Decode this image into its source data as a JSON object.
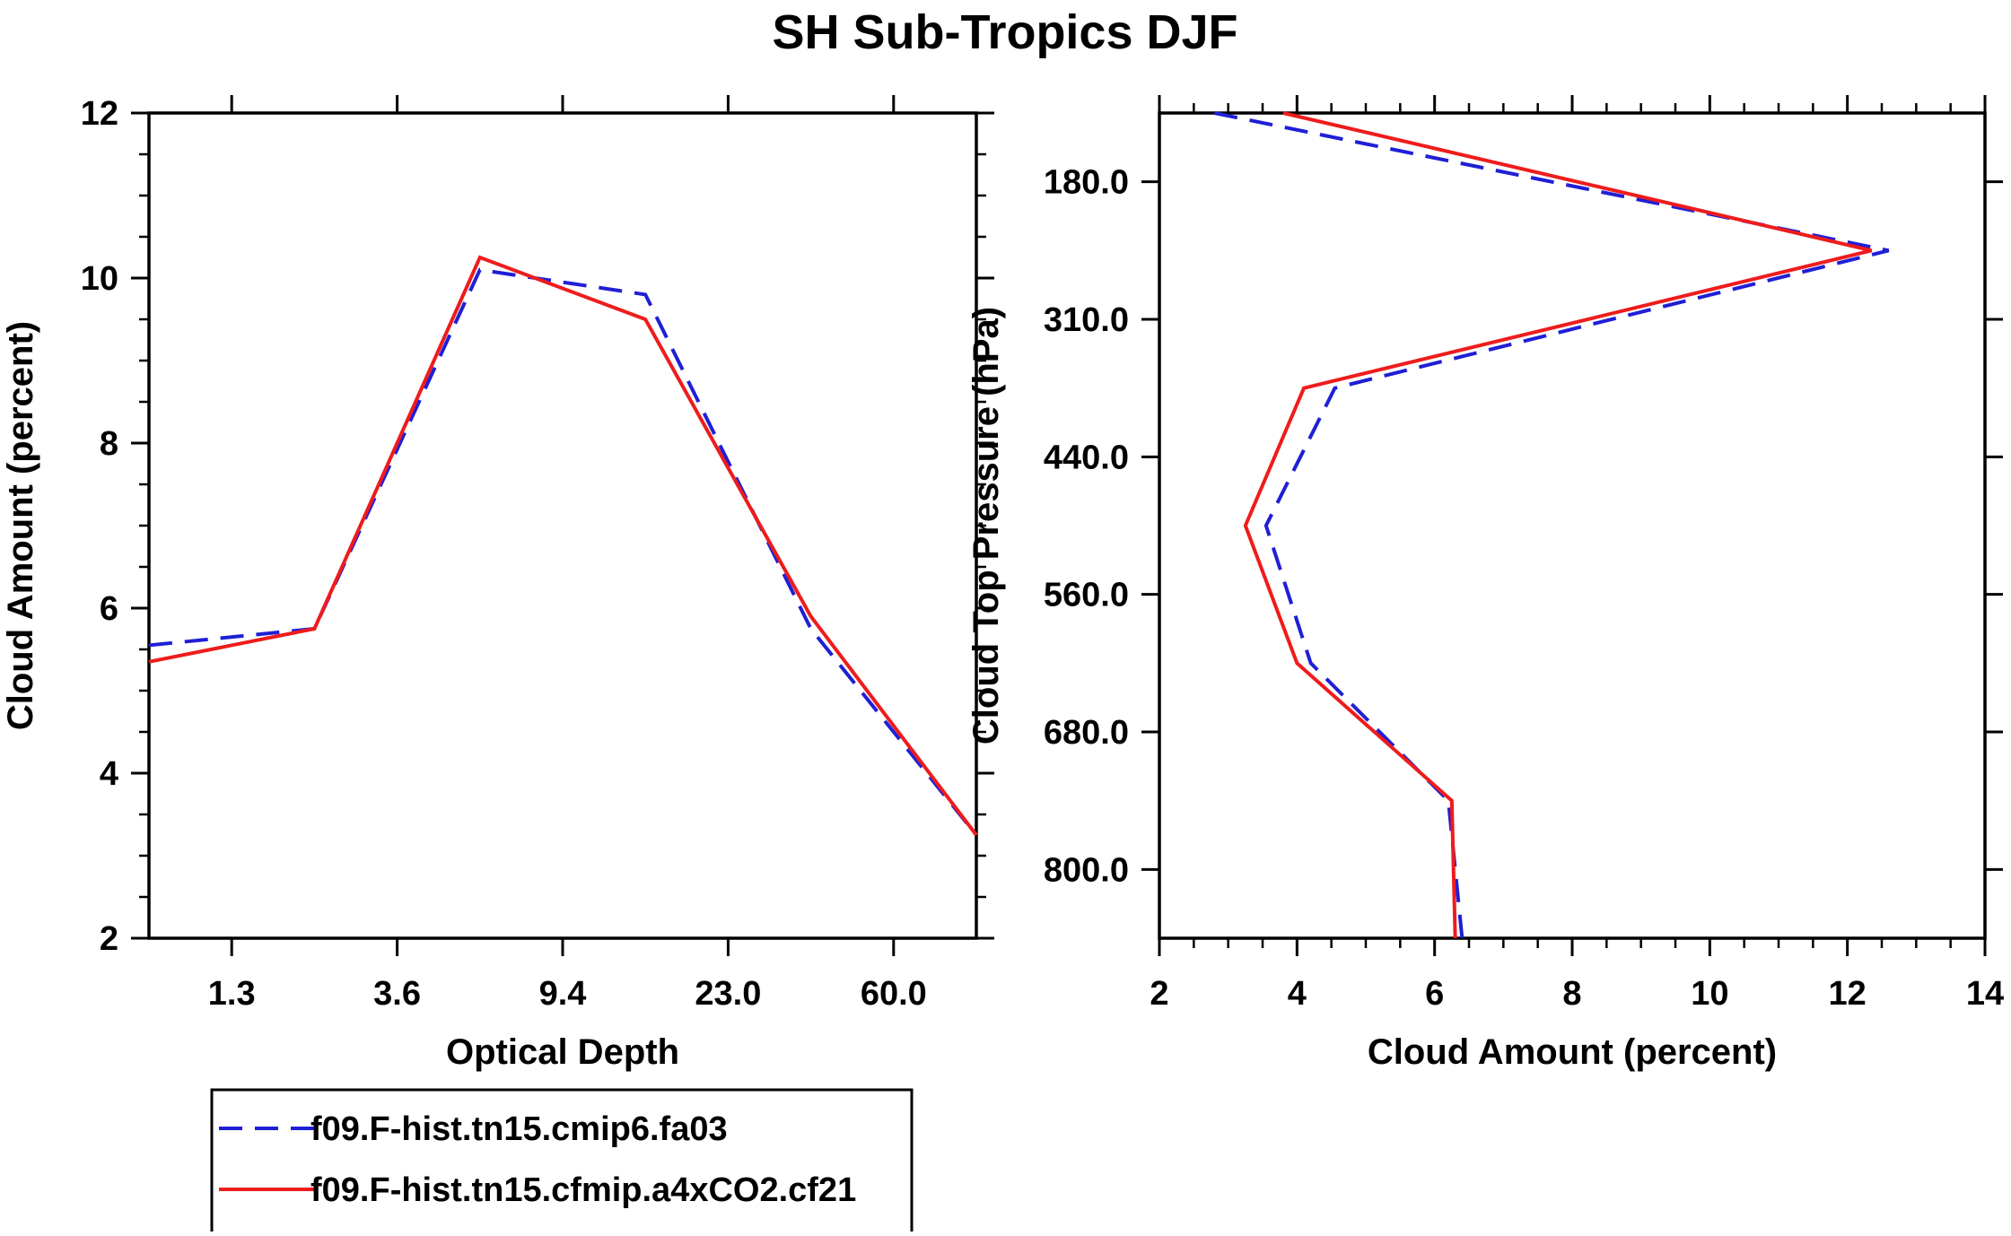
{
  "title": "SH Sub-Tropics DJF",
  "colors": {
    "series_a": "#1f1fd6",
    "series_b": "#ee1c1c",
    "axis": "#000000"
  },
  "legend": {
    "items": [
      {
        "label": "f09.F-hist.tn15.cmip6.fa03",
        "style": "dashed",
        "color": "#1f1fd6"
      },
      {
        "label": "f09.F-hist.tn15.cfmip.a4xCO2.cf21",
        "style": "solid",
        "color": "#ee1c1c"
      }
    ]
  },
  "chart_data": [
    {
      "type": "line",
      "xlabel": "Optical Depth",
      "ylabel": "Cloud Amount (percent)",
      "xlim": [
        0,
        5
      ],
      "ylim": [
        2,
        12
      ],
      "categories": [
        "1.3",
        "3.6",
        "9.4",
        "23.0",
        "60.0"
      ],
      "category_positions": [
        0.5,
        1.5,
        2.5,
        3.5,
        4.5
      ],
      "yticks": [
        2,
        4,
        6,
        8,
        10,
        12
      ],
      "yticks_minor_step": 0.5,
      "series": [
        {
          "name": "f09.F-hist.tn15.cmip6.fa03",
          "style": "dashed",
          "x": [
            0,
            1,
            2,
            3,
            4,
            5
          ],
          "values": [
            5.55,
            5.75,
            10.1,
            9.8,
            5.75,
            3.25
          ]
        },
        {
          "name": "f09.F-hist.tn15.cfmip.a4xCO2.cf21",
          "style": "solid",
          "x": [
            0,
            1,
            2,
            3,
            4,
            5
          ],
          "values": [
            5.35,
            5.75,
            10.25,
            9.5,
            5.9,
            3.25
          ]
        }
      ]
    },
    {
      "type": "line",
      "xlabel": "Cloud Amount (percent)",
      "ylabel": "Cloud Top Pressure (hPa)",
      "xlim": [
        2,
        14
      ],
      "xticks": [
        2,
        4,
        6,
        8,
        10,
        12,
        14
      ],
      "xticks_minor_step": 0.5,
      "ylim": [
        0,
        6
      ],
      "categories": [
        "180.0",
        "310.0",
        "440.0",
        "560.0",
        "680.0",
        "800.0"
      ],
      "category_positions": [
        0.5,
        1.5,
        2.5,
        3.5,
        4.5,
        5.5
      ],
      "series": [
        {
          "name": "f09.F-hist.tn15.cmip6.fa03",
          "style": "dashed",
          "x": [
            2.8,
            12.6,
            4.55,
            3.55,
            4.2,
            6.2,
            6.4
          ],
          "y": [
            0,
            1,
            2,
            3,
            4,
            5,
            6
          ]
        },
        {
          "name": "f09.F-hist.tn15.cfmip.a4xCO2.cf21",
          "style": "solid",
          "x": [
            3.8,
            12.35,
            4.1,
            3.25,
            4.0,
            6.25,
            6.3
          ],
          "y": [
            0,
            1,
            2,
            3,
            4,
            5,
            6
          ]
        }
      ]
    }
  ]
}
